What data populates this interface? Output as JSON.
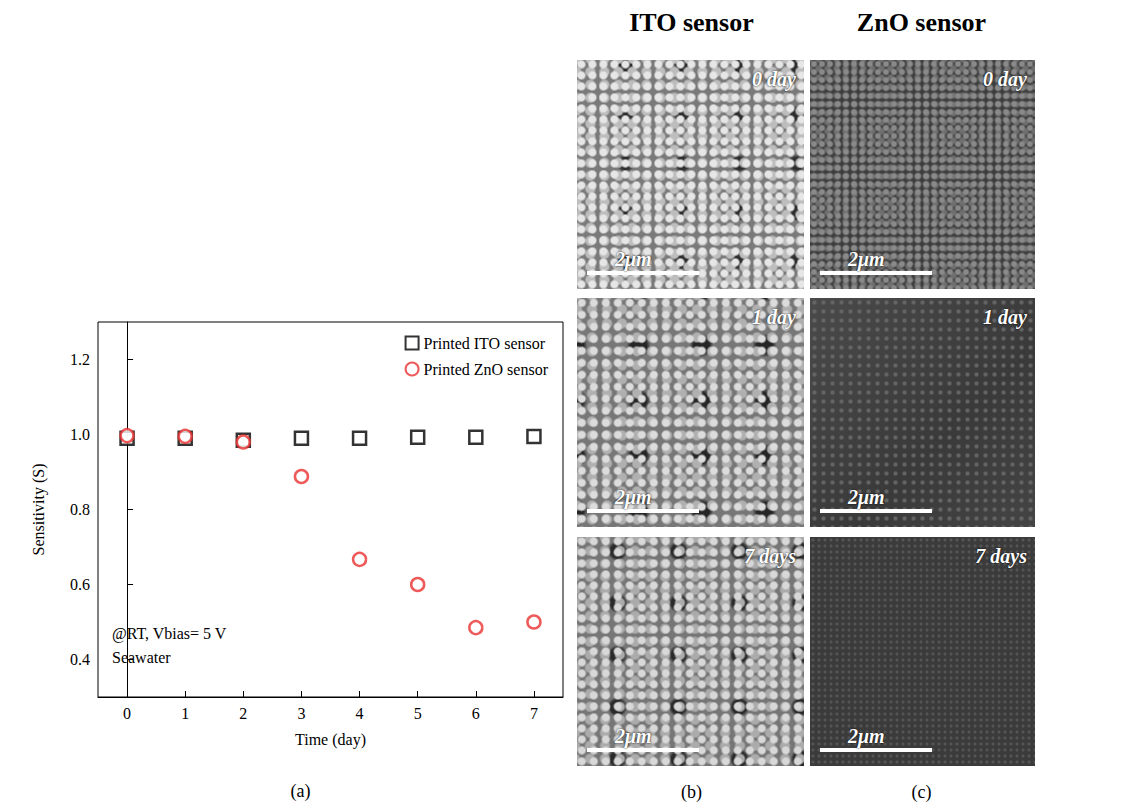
{
  "chart_data": {
    "type": "scatter",
    "panel_label": "(a)",
    "xlabel": "Time (day)",
    "ylabel": "Sensitivity (S)",
    "annotations": [
      "@RT, Vbias= 5 V",
      "Seawater"
    ],
    "x": [
      0,
      1,
      2,
      3,
      4,
      5,
      6,
      7
    ],
    "series": [
      {
        "name": "Printed ITO sensor",
        "color": "#000000",
        "marker": "square",
        "values": [
          0.99,
          0.99,
          0.985,
          0.99,
          0.99,
          0.993,
          0.993,
          0.995
        ]
      },
      {
        "name": "Printed ZnO sensor",
        "color": "#e8312f",
        "marker": "circle",
        "values": [
          0.997,
          0.995,
          0.98,
          0.888,
          0.667,
          0.6,
          0.485,
          0.5
        ]
      }
    ],
    "xlim": [
      -0.5,
      7.5
    ],
    "xticks": [
      0,
      1,
      2,
      3,
      4,
      5,
      6,
      7
    ],
    "ylim": [
      0.3,
      1.3
    ],
    "yticks": [
      0.4,
      0.6,
      0.8,
      {
        "value": 1,
        "label": "1.0"
      },
      1.2
    ],
    "grid": false,
    "legend": "upper right"
  },
  "micrographs": [
    {
      "title": "ITO sensor",
      "panel_label": "(b)",
      "images": [
        {
          "time": "0 day",
          "scale_bar": "2μm"
        },
        {
          "time": "1 day",
          "scale_bar": "2μm"
        },
        {
          "time": "7 days",
          "scale_bar": "2μm"
        }
      ]
    },
    {
      "title": "ZnO sensor",
      "panel_label": "(c)",
      "images": [
        {
          "time": "0 day",
          "scale_bar": "2μm"
        },
        {
          "time": "1 day",
          "scale_bar": "2μm"
        },
        {
          "time": "7 days",
          "scale_bar": "2μm"
        }
      ]
    }
  ]
}
